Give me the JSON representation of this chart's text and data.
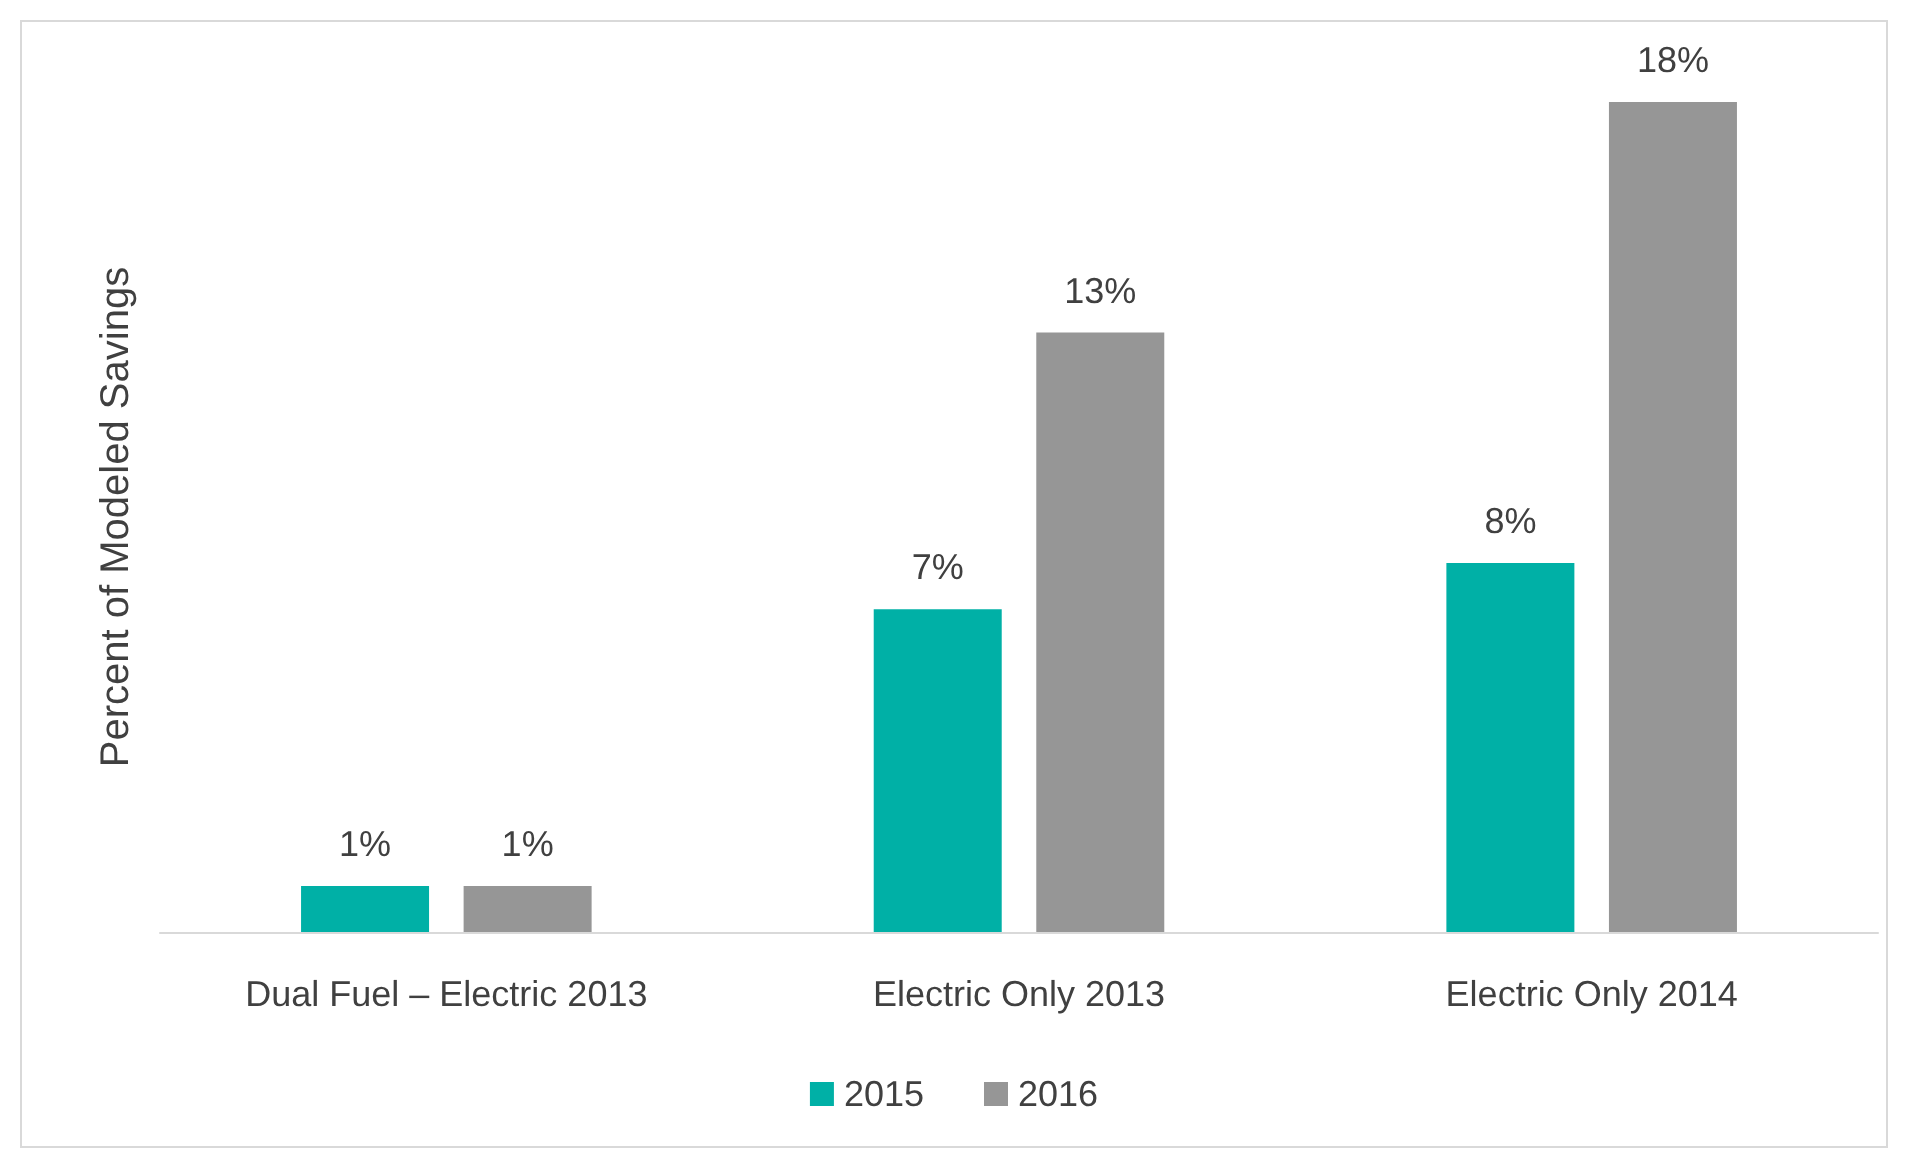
{
  "chart_data": {
    "type": "bar",
    "ylabel": "Percent of Modeled Savings",
    "categories": [
      "Dual Fuel – Electric 2013",
      "Electric Only 2013",
      "Electric Only 2014"
    ],
    "series": [
      {
        "name": "2015",
        "color": "#00b0a6",
        "values": [
          1,
          7,
          8
        ],
        "value_labels": [
          "1%",
          "7%",
          "8%"
        ]
      },
      {
        "name": "2016",
        "color": "#969696",
        "values": [
          1,
          13,
          18
        ],
        "value_labels": [
          "1%",
          "13%",
          "18%"
        ]
      }
    ],
    "legend": "bottom"
  }
}
